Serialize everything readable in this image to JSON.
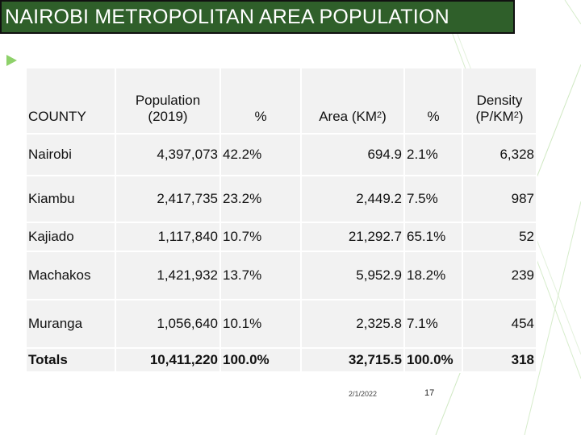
{
  "title": "NAIROBI METROPOLITAN AREA POPULATION",
  "colors": {
    "title_bg": "#2f5f2a",
    "title_text": "#ffffff",
    "accent": "#8ed16a",
    "cell_bg": "#f2f2f2"
  },
  "table": {
    "headers": {
      "county": "COUNTY",
      "population_1": "Population",
      "population_2": "(2019)",
      "pct1": "%",
      "area": "Area (KM",
      "area_sup": "2",
      "area_end": ")",
      "pct2": "%",
      "density_1": "Density",
      "density_2": "(P/KM",
      "density_sup": "2",
      "density_end": ")"
    },
    "rows": [
      {
        "county": "Nairobi",
        "population": "4,397,073",
        "pct1": "42.2%",
        "area": "694.9",
        "pct2": "2.1%",
        "density": "6,328"
      },
      {
        "county": "Kiambu",
        "population": "2,417,735",
        "pct1": "23.2%",
        "area": "2,449.2",
        "pct2": "7.5%",
        "density": "987"
      },
      {
        "county": "Kajiado",
        "population": "1,117,840",
        "pct1": "10.7%",
        "area": "21,292.7",
        "pct2": "65.1%",
        "density": "52"
      },
      {
        "county": "Machakos",
        "population": "1,421,932",
        "pct1": "13.7%",
        "area": "5,952.9",
        "pct2": "18.2%",
        "density": "239"
      },
      {
        "county": "Muranga",
        "population": "1,056,640",
        "pct1": "10.1%",
        "area": "2,325.8",
        "pct2": "7.1%",
        "density": "454"
      }
    ],
    "totals": {
      "county": "Totals",
      "population": "10,411,220",
      "pct1": "100.0%",
      "area": "32,715.5",
      "pct2": "100.0%",
      "density": "318"
    }
  },
  "footer": {
    "date": "2/1/2022",
    "page": "17"
  }
}
